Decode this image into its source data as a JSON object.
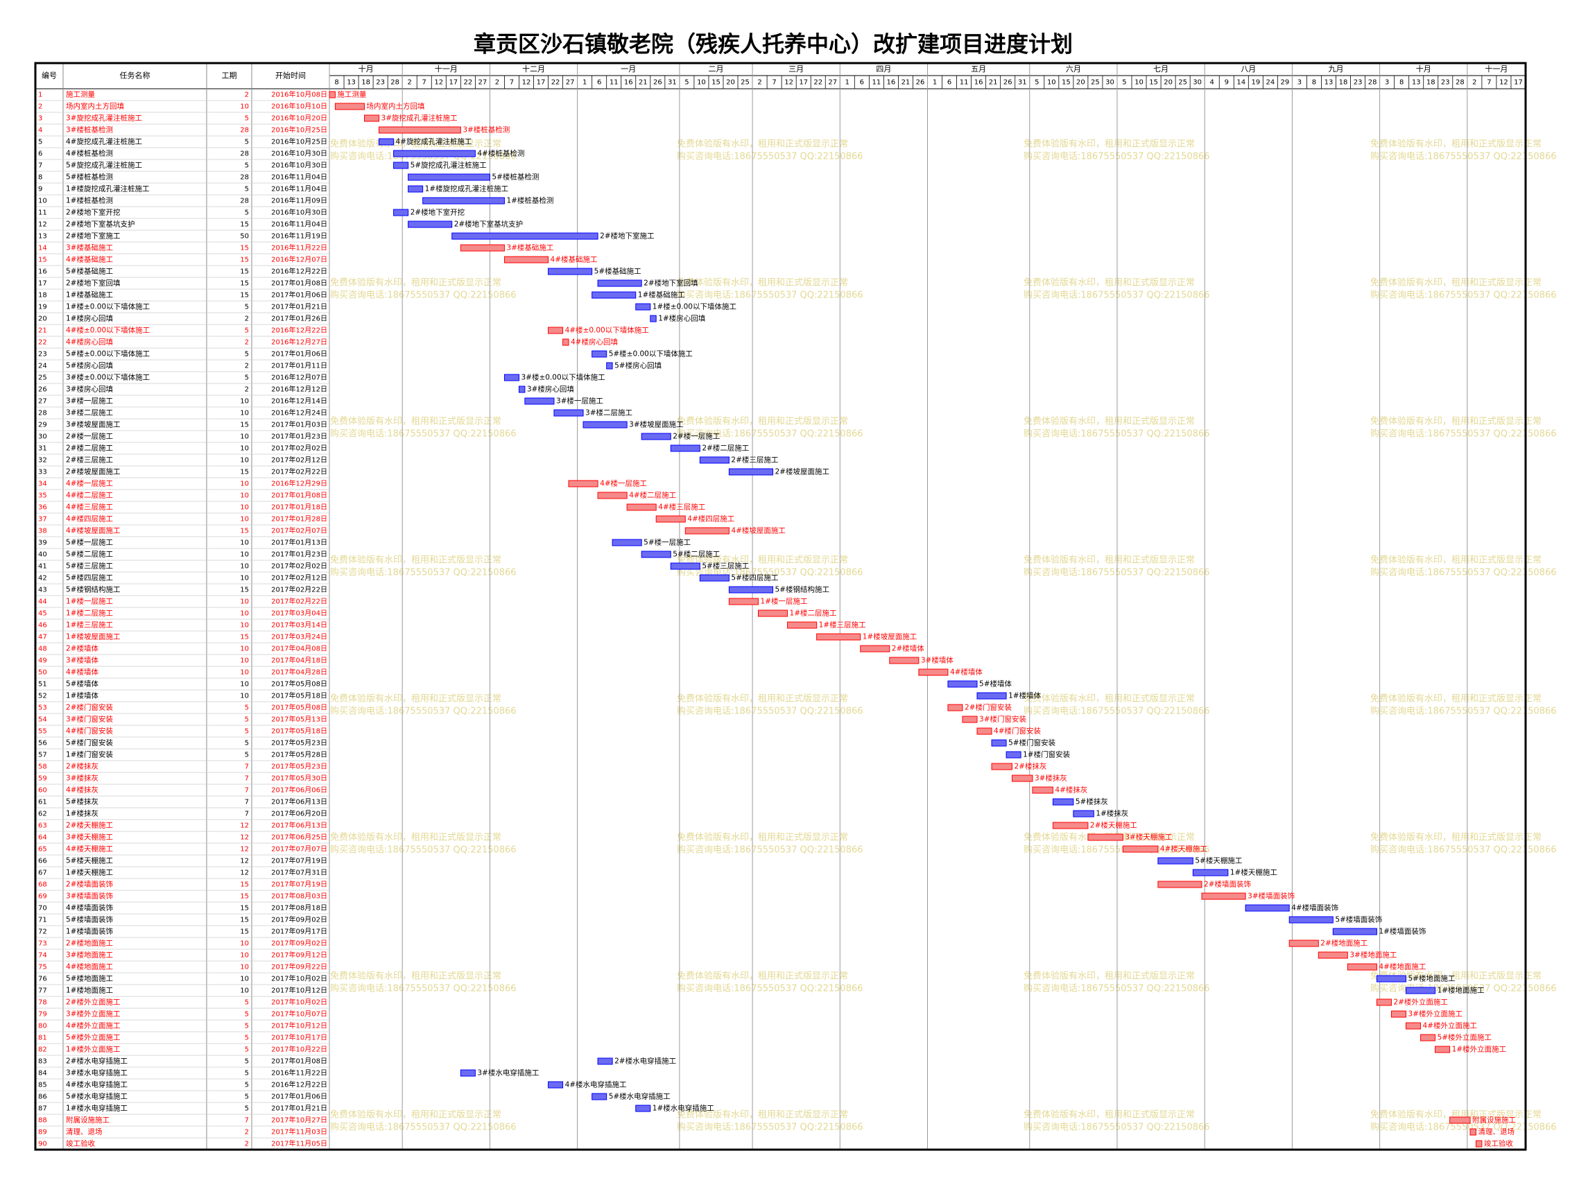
{
  "chart_data": {
    "type": "gantt",
    "title": "章贡区沙石镇敬老院（残疾人托养中心）改扩建项目进度计划",
    "columns": [
      "编号",
      "任务名称",
      "工期",
      "开始时间"
    ],
    "watermark": [
      "免费体验版有水印，租用和正式版显示正常",
      "购买咨询电话:18675550537 QQ:22150866"
    ],
    "months": [
      "十月",
      "十一月",
      "十二月",
      "一月",
      "二月",
      "三月",
      "四月",
      "五月",
      "六月",
      "七月",
      "八月",
      "九月",
      "十月",
      "十一月"
    ],
    "xlim": [
      "2016-10-08",
      "2017-11-22"
    ],
    "xticks": [
      {
        "value": "2016-10-08",
        "label": "8"
      },
      {
        "value": "2016-10-13",
        "label": "13"
      },
      {
        "value": "2016-10-18",
        "label": "18"
      },
      {
        "value": "2016-10-23",
        "label": "23"
      },
      {
        "value": "2016-10-28",
        "label": "28"
      },
      {
        "value": "2016-11-02",
        "label": "2"
      },
      {
        "value": "2016-11-07",
        "label": "7"
      },
      {
        "value": "2016-11-12",
        "label": "12"
      },
      {
        "value": "2016-11-17",
        "label": "17"
      },
      {
        "value": "2016-11-22",
        "label": "22"
      },
      {
        "value": "2016-11-27",
        "label": "27"
      },
      {
        "value": "2016-12-02",
        "label": "2"
      },
      {
        "value": "2016-12-07",
        "label": "7"
      },
      {
        "value": "2016-12-12",
        "label": "12"
      },
      {
        "value": "2016-12-17",
        "label": "17"
      },
      {
        "value": "2016-12-22",
        "label": "22"
      },
      {
        "value": "2016-12-27",
        "label": "27"
      },
      {
        "value": "2017-01-01",
        "label": "1"
      },
      {
        "value": "2017-01-06",
        "label": "6"
      },
      {
        "value": "2017-01-11",
        "label": "11"
      },
      {
        "value": "2017-01-16",
        "label": "16"
      },
      {
        "value": "2017-01-21",
        "label": "21"
      },
      {
        "value": "2017-01-26",
        "label": "26"
      },
      {
        "value": "2017-01-31",
        "label": "31"
      },
      {
        "value": "2017-02-05",
        "label": "5"
      },
      {
        "value": "2017-02-10",
        "label": "10"
      },
      {
        "value": "2017-02-15",
        "label": "15"
      },
      {
        "value": "2017-02-20",
        "label": "20"
      },
      {
        "value": "2017-02-25",
        "label": "25"
      },
      {
        "value": "2017-03-02",
        "label": "2"
      },
      {
        "value": "2017-03-07",
        "label": "7"
      },
      {
        "value": "2017-03-12",
        "label": "12"
      },
      {
        "value": "2017-03-17",
        "label": "17"
      },
      {
        "value": "2017-03-22",
        "label": "22"
      },
      {
        "value": "2017-03-27",
        "label": "27"
      },
      {
        "value": "2017-04-01",
        "label": "1"
      },
      {
        "value": "2017-04-06",
        "label": "6"
      },
      {
        "value": "2017-04-11",
        "label": "11"
      },
      {
        "value": "2017-04-16",
        "label": "16"
      },
      {
        "value": "2017-04-21",
        "label": "21"
      },
      {
        "value": "2017-04-26",
        "label": "26"
      },
      {
        "value": "2017-05-01",
        "label": "1"
      },
      {
        "value": "2017-05-06",
        "label": "6"
      },
      {
        "value": "2017-05-11",
        "label": "11"
      },
      {
        "value": "2017-05-16",
        "label": "16"
      },
      {
        "value": "2017-05-21",
        "label": "21"
      },
      {
        "value": "2017-05-26",
        "label": "26"
      },
      {
        "value": "2017-05-31",
        "label": "31"
      },
      {
        "value": "2017-06-05",
        "label": "5"
      },
      {
        "value": "2017-06-10",
        "label": "10"
      },
      {
        "value": "2017-06-15",
        "label": "15"
      },
      {
        "value": "2017-06-20",
        "label": "20"
      },
      {
        "value": "2017-06-25",
        "label": "25"
      },
      {
        "value": "2017-06-30",
        "label": "30"
      },
      {
        "value": "2017-07-05",
        "label": "5"
      },
      {
        "value": "2017-07-10",
        "label": "10"
      },
      {
        "value": "2017-07-15",
        "label": "15"
      },
      {
        "value": "2017-07-20",
        "label": "20"
      },
      {
        "value": "2017-07-25",
        "label": "25"
      },
      {
        "value": "2017-07-30",
        "label": "30"
      },
      {
        "value": "2017-08-04",
        "label": "4"
      },
      {
        "value": "2017-08-09",
        "label": "9"
      },
      {
        "value": "2017-08-14",
        "label": "14"
      },
      {
        "value": "2017-08-19",
        "label": "19"
      },
      {
        "value": "2017-08-24",
        "label": "24"
      },
      {
        "value": "2017-08-29",
        "label": "29"
      },
      {
        "value": "2017-09-03",
        "label": "3"
      },
      {
        "value": "2017-09-08",
        "label": "8"
      },
      {
        "value": "2017-09-13",
        "label": "13"
      },
      {
        "value": "2017-09-18",
        "label": "18"
      },
      {
        "value": "2017-09-23",
        "label": "23"
      },
      {
        "value": "2017-09-28",
        "label": "28"
      },
      {
        "value": "2017-10-03",
        "label": "3"
      },
      {
        "value": "2017-10-08",
        "label": "8"
      },
      {
        "value": "2017-10-13",
        "label": "13"
      },
      {
        "value": "2017-10-18",
        "label": "18"
      },
      {
        "value": "2017-10-23",
        "label": "23"
      },
      {
        "value": "2017-10-28",
        "label": "28"
      },
      {
        "value": "2017-11-02",
        "label": "2"
      },
      {
        "value": "2017-11-07",
        "label": "7"
      },
      {
        "value": "2017-11-12",
        "label": "12"
      },
      {
        "value": "2017-11-17",
        "label": "17"
      }
    ],
    "tasks": [
      {
        "id": 1,
        "name": "施工测量",
        "duration": 2,
        "start": "2016年10月08日",
        "color": "#ff0000"
      },
      {
        "id": 2,
        "name": "场内室内土方回填",
        "duration": 10,
        "start": "2016年10月10日",
        "color": "#ff0000"
      },
      {
        "id": 3,
        "name": "3#旋挖成孔灌注桩施工",
        "duration": 5,
        "start": "2016年10月20日",
        "color": "#ff0000"
      },
      {
        "id": 4,
        "name": "3#楼桩基检测",
        "duration": 28,
        "start": "2016年10月25日",
        "color": "#ff0000"
      },
      {
        "id": 5,
        "name": "4#旋挖成孔灌注桩施工",
        "duration": 5,
        "start": "2016年10月25日",
        "color": "#0000ff"
      },
      {
        "id": 6,
        "name": "4#楼桩基检测",
        "duration": 28,
        "start": "2016年10月30日",
        "color": "#0000ff"
      },
      {
        "id": 7,
        "name": "5#旋挖成孔灌注桩施工",
        "duration": 5,
        "start": "2016年10月30日",
        "color": "#0000ff"
      },
      {
        "id": 8,
        "name": "5#楼桩基检测",
        "duration": 28,
        "start": "2016年11月04日",
        "color": "#0000ff"
      },
      {
        "id": 9,
        "name": "1#楼旋挖成孔灌注桩施工",
        "duration": 5,
        "start": "2016年11月04日",
        "color": "#0000ff"
      },
      {
        "id": 10,
        "name": "1#楼桩基检测",
        "duration": 28,
        "start": "2016年11月09日",
        "color": "#0000ff"
      },
      {
        "id": 11,
        "name": "2#楼地下室开挖",
        "duration": 5,
        "start": "2016年10月30日",
        "color": "#0000ff"
      },
      {
        "id": 12,
        "name": "2#楼地下室基坑支护",
        "duration": 15,
        "start": "2016年11月04日",
        "color": "#0000ff"
      },
      {
        "id": 13,
        "name": "2#楼地下室施工",
        "duration": 50,
        "start": "2016年11月19日",
        "color": "#0000ff"
      },
      {
        "id": 14,
        "name": "3#楼基础施工",
        "duration": 15,
        "start": "2016年11月22日",
        "color": "#ff0000"
      },
      {
        "id": 15,
        "name": "4#楼基础施工",
        "duration": 15,
        "start": "2016年12月07日",
        "color": "#ff0000"
      },
      {
        "id": 16,
        "name": "5#楼基础施工",
        "duration": 15,
        "start": "2016年12月22日",
        "color": "#0000ff"
      },
      {
        "id": 17,
        "name": "2#楼地下室回填",
        "duration": 15,
        "start": "2017年01月08日",
        "color": "#0000ff"
      },
      {
        "id": 18,
        "name": "1#楼基础施工",
        "duration": 15,
        "start": "2017年01月06日",
        "color": "#0000ff"
      },
      {
        "id": 19,
        "name": "1#楼±0.00以下墙体施工",
        "duration": 5,
        "start": "2017年01月21日",
        "color": "#0000ff"
      },
      {
        "id": 20,
        "name": "1#楼房心回填",
        "duration": 2,
        "start": "2017年01月26日",
        "color": "#0000ff"
      },
      {
        "id": 21,
        "name": "4#楼±0.00以下墙体施工",
        "duration": 5,
        "start": "2016年12月22日",
        "color": "#ff0000"
      },
      {
        "id": 22,
        "name": "4#楼房心回填",
        "duration": 2,
        "start": "2016年12月27日",
        "color": "#ff0000"
      },
      {
        "id": 23,
        "name": "5#楼±0.00以下墙体施工",
        "duration": 5,
        "start": "2017年01月06日",
        "color": "#0000ff"
      },
      {
        "id": 24,
        "name": "5#楼房心回填",
        "duration": 2,
        "start": "2017年01月11日",
        "color": "#0000ff"
      },
      {
        "id": 25,
        "name": "3#楼±0.00以下墙体施工",
        "duration": 5,
        "start": "2016年12月07日",
        "color": "#0000ff"
      },
      {
        "id": 26,
        "name": "3#楼房心回填",
        "duration": 2,
        "start": "2016年12月12日",
        "color": "#0000ff"
      },
      {
        "id": 27,
        "name": "3#楼一层施工",
        "duration": 10,
        "start": "2016年12月14日",
        "color": "#0000ff"
      },
      {
        "id": 28,
        "name": "3#楼二层施工",
        "duration": 10,
        "start": "2016年12月24日",
        "color": "#0000ff"
      },
      {
        "id": 29,
        "name": "3#楼坡屋面施工",
        "duration": 15,
        "start": "2017年01月03日",
        "color": "#0000ff"
      },
      {
        "id": 30,
        "name": "2#楼一层施工",
        "duration": 10,
        "start": "2017年01月23日",
        "color": "#0000ff"
      },
      {
        "id": 31,
        "name": "2#楼二层施工",
        "duration": 10,
        "start": "2017年02月02日",
        "color": "#0000ff"
      },
      {
        "id": 32,
        "name": "2#楼三层施工",
        "duration": 10,
        "start": "2017年02月12日",
        "color": "#0000ff"
      },
      {
        "id": 33,
        "name": "2#楼坡屋面施工",
        "duration": 15,
        "start": "2017年02月22日",
        "color": "#0000ff"
      },
      {
        "id": 34,
        "name": "4#楼一层施工",
        "duration": 10,
        "start": "2016年12月29日",
        "color": "#ff0000"
      },
      {
        "id": 35,
        "name": "4#楼二层施工",
        "duration": 10,
        "start": "2017年01月08日",
        "color": "#ff0000"
      },
      {
        "id": 36,
        "name": "4#楼三层施工",
        "duration": 10,
        "start": "2017年01月18日",
        "color": "#ff0000"
      },
      {
        "id": 37,
        "name": "4#楼四层施工",
        "duration": 10,
        "start": "2017年01月28日",
        "color": "#ff0000"
      },
      {
        "id": 38,
        "name": "4#楼坡屋面施工",
        "duration": 15,
        "start": "2017年02月07日",
        "color": "#ff0000"
      },
      {
        "id": 39,
        "name": "5#楼一层施工",
        "duration": 10,
        "start": "2017年01月13日",
        "color": "#0000ff"
      },
      {
        "id": 40,
        "name": "5#楼二层施工",
        "duration": 10,
        "start": "2017年01月23日",
        "color": "#0000ff"
      },
      {
        "id": 41,
        "name": "5#楼三层施工",
        "duration": 10,
        "start": "2017年02月02日",
        "color": "#0000ff"
      },
      {
        "id": 42,
        "name": "5#楼四层施工",
        "duration": 10,
        "start": "2017年02月12日",
        "color": "#0000ff"
      },
      {
        "id": 43,
        "name": "5#楼钢结构施工",
        "duration": 15,
        "start": "2017年02月22日",
        "color": "#0000ff"
      },
      {
        "id": 44,
        "name": "1#楼一层施工",
        "duration": 10,
        "start": "2017年02月22日",
        "color": "#ff0000"
      },
      {
        "id": 45,
        "name": "1#楼二层施工",
        "duration": 10,
        "start": "2017年03月04日",
        "color": "#ff0000"
      },
      {
        "id": 46,
        "name": "1#楼三层施工",
        "duration": 10,
        "start": "2017年03月14日",
        "color": "#ff0000"
      },
      {
        "id": 47,
        "name": "1#楼坡屋面施工",
        "duration": 15,
        "start": "2017年03月24日",
        "color": "#ff0000"
      },
      {
        "id": 48,
        "name": "2#楼墙体",
        "duration": 10,
        "start": "2017年04月08日",
        "color": "#ff0000"
      },
      {
        "id": 49,
        "name": "3#楼墙体",
        "duration": 10,
        "start": "2017年04月18日",
        "color": "#ff0000"
      },
      {
        "id": 50,
        "name": "4#楼墙体",
        "duration": 10,
        "start": "2017年04月28日",
        "color": "#ff0000"
      },
      {
        "id": 51,
        "name": "5#楼墙体",
        "duration": 10,
        "start": "2017年05月08日",
        "color": "#0000ff"
      },
      {
        "id": 52,
        "name": "1#楼墙体",
        "duration": 10,
        "start": "2017年05月18日",
        "color": "#0000ff"
      },
      {
        "id": 53,
        "name": "2#楼门窗安装",
        "duration": 5,
        "start": "2017年05月08日",
        "color": "#ff0000"
      },
      {
        "id": 54,
        "name": "3#楼门窗安装",
        "duration": 5,
        "start": "2017年05月13日",
        "color": "#ff0000"
      },
      {
        "id": 55,
        "name": "4#楼门窗安装",
        "duration": 5,
        "start": "2017年05月18日",
        "color": "#ff0000"
      },
      {
        "id": 56,
        "name": "5#楼门窗安装",
        "duration": 5,
        "start": "2017年05月23日",
        "color": "#0000ff"
      },
      {
        "id": 57,
        "name": "1#楼门窗安装",
        "duration": 5,
        "start": "2017年05月28日",
        "color": "#0000ff"
      },
      {
        "id": 58,
        "name": "2#楼抹灰",
        "duration": 7,
        "start": "2017年05月23日",
        "color": "#ff0000"
      },
      {
        "id": 59,
        "name": "3#楼抹灰",
        "duration": 7,
        "start": "2017年05月30日",
        "color": "#ff0000"
      },
      {
        "id": 60,
        "name": "4#楼抹灰",
        "duration": 7,
        "start": "2017年06月06日",
        "color": "#ff0000"
      },
      {
        "id": 61,
        "name": "5#楼抹灰",
        "duration": 7,
        "start": "2017年06月13日",
        "color": "#0000ff"
      },
      {
        "id": 62,
        "name": "1#楼抹灰",
        "duration": 7,
        "start": "2017年06月20日",
        "color": "#0000ff"
      },
      {
        "id": 63,
        "name": "2#楼天棚施工",
        "duration": 12,
        "start": "2017年06月13日",
        "color": "#ff0000"
      },
      {
        "id": 64,
        "name": "3#楼天棚施工",
        "duration": 12,
        "start": "2017年06月25日",
        "color": "#ff0000"
      },
      {
        "id": 65,
        "name": "4#楼天棚施工",
        "duration": 12,
        "start": "2017年07月07日",
        "color": "#ff0000"
      },
      {
        "id": 66,
        "name": "5#楼天棚施工",
        "duration": 12,
        "start": "2017年07月19日",
        "color": "#0000ff"
      },
      {
        "id": 67,
        "name": "1#楼天棚施工",
        "duration": 12,
        "start": "2017年07月31日",
        "color": "#0000ff"
      },
      {
        "id": 68,
        "name": "2#楼墙面装饰",
        "duration": 15,
        "start": "2017年07月19日",
        "color": "#ff0000"
      },
      {
        "id": 69,
        "name": "3#楼墙面装饰",
        "duration": 15,
        "start": "2017年08月03日",
        "color": "#ff0000"
      },
      {
        "id": 70,
        "name": "4#楼墙面装饰",
        "duration": 15,
        "start": "2017年08月18日",
        "color": "#0000ff"
      },
      {
        "id": 71,
        "name": "5#楼墙面装饰",
        "duration": 15,
        "start": "2017年09月02日",
        "color": "#0000ff"
      },
      {
        "id": 72,
        "name": "1#楼墙面装饰",
        "duration": 15,
        "start": "2017年09月17日",
        "color": "#0000ff"
      },
      {
        "id": 73,
        "name": "2#楼地面施工",
        "duration": 10,
        "start": "2017年09月02日",
        "color": "#ff0000"
      },
      {
        "id": 74,
        "name": "3#楼地面施工",
        "duration": 10,
        "start": "2017年09月12日",
        "color": "#ff0000"
      },
      {
        "id": 75,
        "name": "4#楼地面施工",
        "duration": 10,
        "start": "2017年09月22日",
        "color": "#ff0000"
      },
      {
        "id": 76,
        "name": "5#楼地面施工",
        "duration": 10,
        "start": "2017年10月02日",
        "color": "#0000ff"
      },
      {
        "id": 77,
        "name": "1#楼地面施工",
        "duration": 10,
        "start": "2017年10月12日",
        "color": "#0000ff"
      },
      {
        "id": 78,
        "name": "2#楼外立面施工",
        "duration": 5,
        "start": "2017年10月02日",
        "color": "#ff0000"
      },
      {
        "id": 79,
        "name": "3#楼外立面施工",
        "duration": 5,
        "start": "2017年10月07日",
        "color": "#ff0000"
      },
      {
        "id": 80,
        "name": "4#楼外立面施工",
        "duration": 5,
        "start": "2017年10月12日",
        "color": "#ff0000"
      },
      {
        "id": 81,
        "name": "5#楼外立面施工",
        "duration": 5,
        "start": "2017年10月17日",
        "color": "#ff0000"
      },
      {
        "id": 82,
        "name": "1#楼外立面施工",
        "duration": 5,
        "start": "2017年10月22日",
        "color": "#ff0000"
      },
      {
        "id": 83,
        "name": "2#楼水电穿插施工",
        "duration": 5,
        "start": "2017年01月08日",
        "color": "#0000ff"
      },
      {
        "id": 84,
        "name": "3#楼水电穿插施工",
        "duration": 5,
        "start": "2016年11月22日",
        "color": "#0000ff"
      },
      {
        "id": 85,
        "name": "4#楼水电穿插施工",
        "duration": 5,
        "start": "2016年12月22日",
        "color": "#0000ff"
      },
      {
        "id": 86,
        "name": "5#楼水电穿插施工",
        "duration": 5,
        "start": "2017年01月06日",
        "color": "#0000ff"
      },
      {
        "id": 87,
        "name": "1#楼水电穿插施工",
        "duration": 5,
        "start": "2017年01月21日",
        "color": "#0000ff"
      },
      {
        "id": 88,
        "name": "附属设施施工",
        "duration": 7,
        "start": "2017年10月27日",
        "color": "#ff0000"
      },
      {
        "id": 89,
        "name": "清理、退场",
        "duration": 2,
        "start": "2017年11月03日",
        "color": "#ff0000"
      },
      {
        "id": 90,
        "name": "竣工验收",
        "duration": 2,
        "start": "2017年11月05日",
        "color": "#ff0000"
      }
    ]
  }
}
